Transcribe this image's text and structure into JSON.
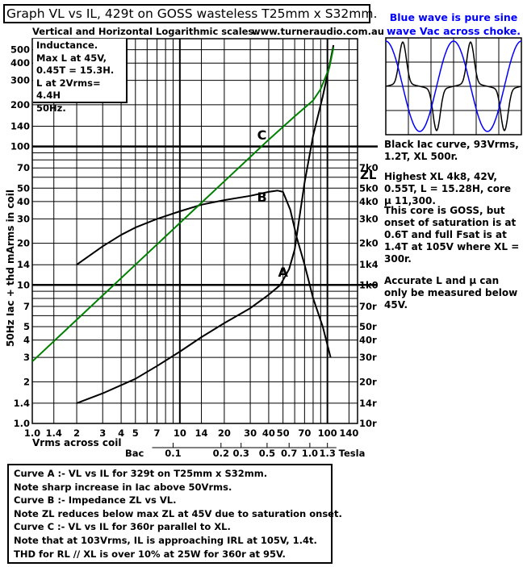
{
  "title": "Graph VL vs IL, 429t on GOSS wasteless T25mm x S32mm.",
  "subtitle": "Vertical and Horizontal Logarithmic scales.",
  "website": "www.turneraudio.com.au",
  "inductance_box": [
    "Inductance.",
    "Max L at 45V,",
    "0.45T = 15.3H.",
    "L at 2Vrms= 4.4H",
    "50Hz."
  ],
  "blue_wave_note": [
    "Blue wave is pure sine",
    "wave Vac across choke."
  ],
  "right_notes": [
    "Black Iac curve, 93Vrms, 1.2T, XL 500r.",
    "Highest XL 4k8, 42V, 0.55T, L = 15.28H, core μ 11,300.",
    "This core is GOSS, but onset of saturation is at 0.6T and full Fsat is at 1.4T at 105V  where XL = 300r.",
    "Accurate L and μ can only be measured below 45V."
  ],
  "caption_lines": [
    "Curve A :- VL vs IL for 329t on T25mm x S32mm.",
    "Note sharp increase in Iac above 50Vrms.",
    "Curve B :- Impedance ZL vs VL.",
    "Note ZL reduces below max ZL at 45V due to saturation onset.",
    "Curve C :- VL vs IL for 360r parallel to XL.",
    "Note that at 103Vrms, IL is approaching IRL at 105V, 1.4t.",
    "THD for RL // XL is over 10% at 25W for 360r at 95V."
  ],
  "chart_data": {
    "type": "line",
    "x_scale": "log",
    "y_scale": "log",
    "xlabel": "Vrms across coil",
    "ylabel": "50Hz  Iac + thd mArms in coil",
    "right_axis_label": "ZL",
    "xlim": [
      1.0,
      160
    ],
    "ylim": [
      1.0,
      600
    ],
    "x_tick_labels": [
      {
        "v": 1.0,
        "t": "1.0"
      },
      {
        "v": 1.4,
        "t": "1.4"
      },
      {
        "v": 2,
        "t": "2"
      },
      {
        "v": 3,
        "t": "3"
      },
      {
        "v": 4,
        "t": "4"
      },
      {
        "v": 5,
        "t": "5"
      },
      {
        "v": 7,
        "t": "7"
      },
      {
        "v": 10,
        "t": "10"
      },
      {
        "v": 14,
        "t": "14"
      },
      {
        "v": 20,
        "t": "20"
      },
      {
        "v": 30,
        "t": "30"
      },
      {
        "v": 40,
        "t": "40"
      },
      {
        "v": 50,
        "t": "50"
      },
      {
        "v": 70,
        "t": "70"
      },
      {
        "v": 100,
        "t": "100"
      },
      {
        "v": 140,
        "t": "140"
      }
    ],
    "y_tick_labels": [
      {
        "v": 1.0,
        "t": "1.0"
      },
      {
        "v": 1.4,
        "t": "1.4"
      },
      {
        "v": 2,
        "t": "2"
      },
      {
        "v": 3,
        "t": "3"
      },
      {
        "v": 4,
        "t": "4"
      },
      {
        "v": 5,
        "t": "5"
      },
      {
        "v": 7,
        "t": "7"
      },
      {
        "v": 10,
        "t": "10"
      },
      {
        "v": 14,
        "t": "14"
      },
      {
        "v": 20,
        "t": "20"
      },
      {
        "v": 30,
        "t": "30"
      },
      {
        "v": 40,
        "t": "40"
      },
      {
        "v": 50,
        "t": "50"
      },
      {
        "v": 70,
        "t": "70"
      },
      {
        "v": 100,
        "t": "100"
      },
      {
        "v": 140,
        "t": "140"
      },
      {
        "v": 200,
        "t": "200"
      },
      {
        "v": 300,
        "t": "300"
      },
      {
        "v": 400,
        "t": "400"
      },
      {
        "v": 500,
        "t": "500"
      }
    ],
    "zl_tick_labels": [
      {
        "v": 1.0,
        "t": "10r"
      },
      {
        "v": 1.4,
        "t": "14r"
      },
      {
        "v": 2,
        "t": "20r"
      },
      {
        "v": 3,
        "t": "30r"
      },
      {
        "v": 4,
        "t": "40r"
      },
      {
        "v": 5,
        "t": "50r"
      },
      {
        "v": 7,
        "t": "70r"
      },
      {
        "v": 10,
        "t": "1k0"
      },
      {
        "v": 14,
        "t": "1k4"
      },
      {
        "v": 20,
        "t": "2k0"
      },
      {
        "v": 30,
        "t": "3k0"
      },
      {
        "v": 40,
        "t": "4k0"
      },
      {
        "v": 50,
        "t": "5k0"
      },
      {
        "v": 70,
        "t": "7k0"
      }
    ],
    "tesla_axis_label": "Tesla",
    "bac_label": "Bac",
    "tesla_tick_labels": [
      {
        "v": 9,
        "t": "0.1"
      },
      {
        "v": 19,
        "t": "0.2"
      },
      {
        "v": 26,
        "t": "0.3"
      },
      {
        "v": 39,
        "t": "0.5"
      },
      {
        "v": 55,
        "t": "0.7"
      },
      {
        "v": 76,
        "t": "1.0"
      },
      {
        "v": 100,
        "t": "1.3"
      }
    ],
    "series": [
      {
        "name": "A",
        "color": "#000000",
        "label_at": [
          50,
          11.5
        ],
        "points": [
          [
            2,
            1.4
          ],
          [
            3,
            1.65
          ],
          [
            5,
            2.1
          ],
          [
            7,
            2.6
          ],
          [
            10,
            3.3
          ],
          [
            14,
            4.2
          ],
          [
            20,
            5.3
          ],
          [
            30,
            6.8
          ],
          [
            40,
            8.5
          ],
          [
            48,
            10
          ],
          [
            55,
            13
          ],
          [
            60,
            18
          ],
          [
            70,
            55
          ],
          [
            80,
            120
          ],
          [
            93,
            230
          ],
          [
            103,
            380
          ],
          [
            110,
            540
          ]
        ]
      },
      {
        "name": "B",
        "color": "#000000",
        "label_at": [
          36,
          40
        ],
        "points": [
          [
            2,
            14
          ],
          [
            3,
            19
          ],
          [
            4,
            23
          ],
          [
            5,
            26
          ],
          [
            7,
            30
          ],
          [
            10,
            34
          ],
          [
            14,
            38
          ],
          [
            20,
            41
          ],
          [
            30,
            44
          ],
          [
            40,
            47
          ],
          [
            46,
            48
          ],
          [
            50,
            47
          ],
          [
            56,
            35
          ],
          [
            62,
            22
          ],
          [
            70,
            14
          ],
          [
            80,
            8
          ],
          [
            93,
            5
          ],
          [
            105,
            3
          ]
        ]
      },
      {
        "name": "C",
        "color": "#008000",
        "label_at": [
          36,
          112
        ],
        "points": [
          [
            1,
            2.8
          ],
          [
            2,
            5.6
          ],
          [
            5,
            14
          ],
          [
            10,
            28
          ],
          [
            20,
            56
          ],
          [
            30,
            84
          ],
          [
            40,
            112
          ],
          [
            60,
            165
          ],
          [
            80,
            215
          ],
          [
            90,
            260
          ],
          [
            103,
            370
          ],
          [
            110,
            520
          ]
        ]
      }
    ],
    "blue_wave_color": "#0000ff"
  }
}
